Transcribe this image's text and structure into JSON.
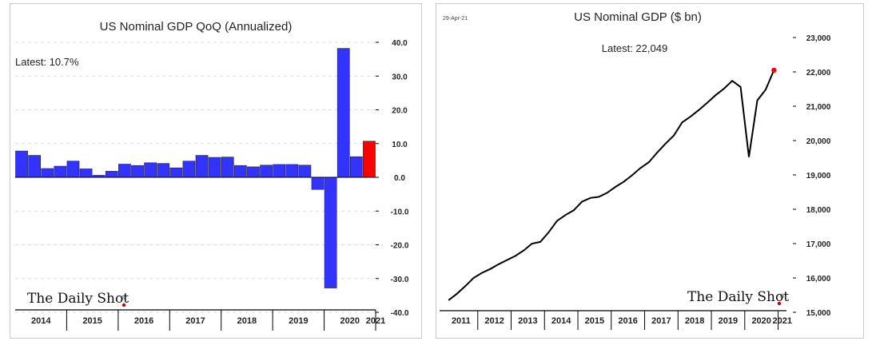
{
  "chart_data": [
    {
      "type": "bar",
      "title": "US Nominal GDP QoQ (Annualized)",
      "latest_label": "Latest:  10.7%",
      "ylim": [
        -40,
        40
      ],
      "yticks": [
        "40.0",
        "30.0",
        "20.0",
        "10.0",
        "0.0",
        "-10.0",
        "-20.0",
        "-30.0",
        "-40.0"
      ],
      "ytick_values": [
        40,
        30,
        20,
        10,
        0,
        -10,
        -20,
        -30,
        -40
      ],
      "year_labels": [
        "2014",
        "2015",
        "2016",
        "2017",
        "2018",
        "2019",
        "2020",
        "2021"
      ],
      "quarters_start": "2014-Q1",
      "values": [
        7.8,
        6.5,
        2.6,
        3.3,
        4.8,
        2.5,
        0.6,
        1.8,
        3.9,
        3.5,
        4.3,
        4.1,
        2.8,
        4.8,
        6.5,
        5.9,
        6.0,
        3.5,
        3.1,
        3.6,
        3.8,
        3.8,
        3.6,
        -3.6,
        -32.8,
        38.2,
        6.1,
        10.7
      ],
      "bar_color": "#3333ff",
      "highlight_color": "#ff0000",
      "highlight_index": 27,
      "logo": "The Daily Shot"
    },
    {
      "type": "line",
      "title": "US Nominal GDP ($ bn)",
      "date_label": "29-Apr-21",
      "latest_label": "Latest:  22,049",
      "ylim": [
        15000,
        23000
      ],
      "yticks": [
        "23,000",
        "22,000",
        "21,000",
        "20,000",
        "19,000",
        "18,000",
        "17,000",
        "16,000",
        "15,000"
      ],
      "ytick_values": [
        23000,
        22000,
        21000,
        20000,
        19000,
        18000,
        17000,
        16000,
        15000
      ],
      "year_labels": [
        "2011",
        "2012",
        "2013",
        "2014",
        "2015",
        "2016",
        "2017",
        "2018",
        "2019",
        "2020",
        "2021"
      ],
      "quarters_start": "2011-Q1",
      "values": [
        15350,
        15540,
        15760,
        16000,
        16150,
        16260,
        16400,
        16520,
        16640,
        16800,
        17000,
        17050,
        17330,
        17660,
        17830,
        17970,
        18220,
        18330,
        18360,
        18480,
        18650,
        18800,
        18990,
        19200,
        19370,
        19650,
        19910,
        20150,
        20530,
        20700,
        20890,
        21100,
        21320,
        21510,
        21740,
        21560,
        19520,
        21170,
        21480,
        22049
      ],
      "line_color": "#000000",
      "last_point_color": "#ff0000",
      "logo": "The Daily Shot"
    }
  ]
}
